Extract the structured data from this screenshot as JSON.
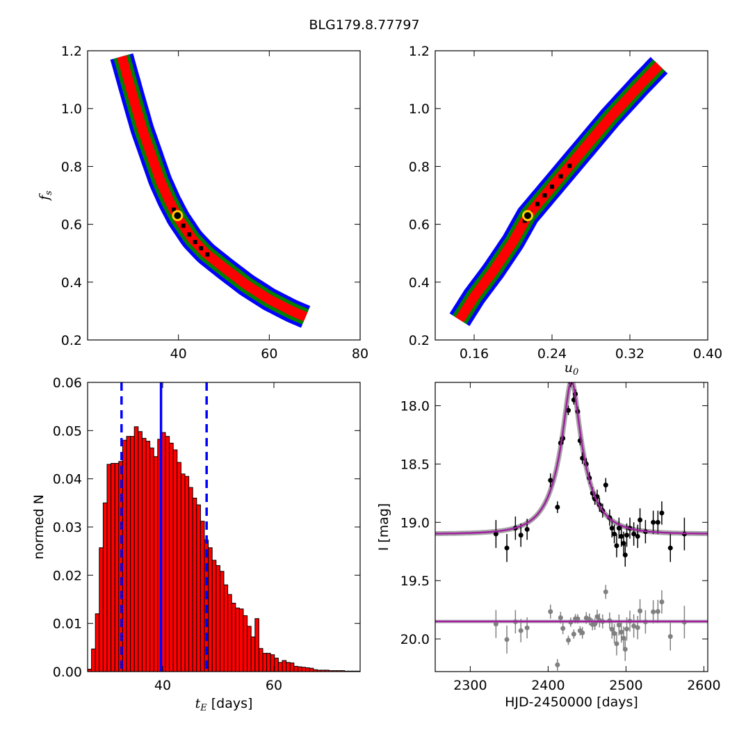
{
  "figure_title": "BLG179.8.77797",
  "chart_data": [
    {
      "id": "fs-vs-tE",
      "type": "heatmap",
      "ylabel": "f",
      "ylabel_sub": "s",
      "xlim": [
        20,
        80
      ],
      "ylim": [
        0.2,
        1.2
      ],
      "xticks": [
        40,
        60,
        80
      ],
      "yticks": [
        0.2,
        0.4,
        0.6,
        0.8,
        1.0,
        1.2
      ],
      "ytick_labels": [
        "0.2",
        "0.4",
        "0.6",
        "0.8",
        "1.0",
        "1.2"
      ],
      "best_fit": {
        "x": 39.8,
        "y": 0.63
      },
      "band_colors": {
        "outer": "#0000ff",
        "mid": "#008000",
        "inner": "#ff0000",
        "core": "#000000"
      },
      "ridge": [
        [
          27.5,
          1.18
        ],
        [
          30,
          1.04
        ],
        [
          32,
          0.93
        ],
        [
          34,
          0.84
        ],
        [
          36,
          0.75
        ],
        [
          38,
          0.68
        ],
        [
          40,
          0.62
        ],
        [
          43,
          0.55
        ],
        [
          46,
          0.5
        ],
        [
          50,
          0.45
        ],
        [
          55,
          0.39
        ],
        [
          60,
          0.34
        ],
        [
          65,
          0.3
        ],
        [
          68,
          0.28
        ]
      ]
    },
    {
      "id": "fs-vs-u0",
      "type": "heatmap",
      "xlabel": "u",
      "xlabel_sub": "0",
      "xlim": [
        0.12,
        0.4
      ],
      "ylim": [
        0.2,
        1.2
      ],
      "xticks": [
        0.16,
        0.24,
        0.32,
        0.4
      ],
      "xtick_labels": [
        "0.16",
        "0.24",
        "0.32",
        "0.40"
      ],
      "yticks": [
        0.2,
        0.4,
        0.6,
        0.8,
        1.0,
        1.2
      ],
      "ytick_labels": [
        "0.2",
        "0.4",
        "0.6",
        "0.8",
        "1.0",
        "1.2"
      ],
      "best_fit": {
        "x": 0.215,
        "y": 0.63
      },
      "band_colors": {
        "outer": "#0000ff",
        "mid": "#008000",
        "inner": "#ff0000",
        "core": "#000000"
      },
      "ridge": [
        [
          0.145,
          0.27
        ],
        [
          0.16,
          0.35
        ],
        [
          0.18,
          0.44
        ],
        [
          0.2,
          0.54
        ],
        [
          0.215,
          0.63
        ],
        [
          0.24,
          0.73
        ],
        [
          0.27,
          0.85
        ],
        [
          0.3,
          0.97
        ],
        [
          0.33,
          1.08
        ],
        [
          0.35,
          1.15
        ]
      ]
    },
    {
      "id": "tE-histogram",
      "type": "bar",
      "xlabel": "t",
      "xlabel_sub": "E",
      "xlabel_unit": " [days]",
      "ylabel": "normed N",
      "xlim": [
        26.5,
        75.5
      ],
      "ylim": [
        0,
        0.06
      ],
      "xticks": [
        40,
        60
      ],
      "yticks": [
        0,
        0.01,
        0.02,
        0.03,
        0.04,
        0.05,
        0.06
      ],
      "ytick_labels": [
        "0.00",
        "0.01",
        "0.02",
        "0.03",
        "0.04",
        "0.05",
        "0.06"
      ],
      "bin_start": 26.5,
      "bin_width": 0.7,
      "values": [
        0.0005,
        0.0047,
        0.012,
        0.0257,
        0.035,
        0.043,
        0.0432,
        0.0432,
        0.0436,
        0.048,
        0.0488,
        0.0488,
        0.0508,
        0.0498,
        0.0484,
        0.0478,
        0.0464,
        0.0446,
        0.0482,
        0.0496,
        0.0488,
        0.0474,
        0.046,
        0.0434,
        0.041,
        0.0405,
        0.0382,
        0.036,
        0.0346,
        0.0312,
        0.0273,
        0.0257,
        0.0231,
        0.022,
        0.0208,
        0.018,
        0.016,
        0.0142,
        0.0132,
        0.013,
        0.0116,
        0.0094,
        0.0072,
        0.011,
        0.0048,
        0.0038,
        0.0038,
        0.0035,
        0.0028,
        0.0019,
        0.0023,
        0.0019,
        0.0018,
        0.0011,
        0.001,
        0.0009,
        0.0008,
        0.0007,
        0.0004,
        0.0003,
        0.0003,
        0.0003,
        0.0002,
        0.0002,
        0.0002,
        0.0002,
        0.0001,
        0.0001,
        0.0001,
        0.0001
      ],
      "bar_color": "#ff0000",
      "median": 39.7,
      "lower": 32.6,
      "upper": 47.9,
      "line_color": "#0000ff"
    },
    {
      "id": "light-curve",
      "type": "scatter",
      "xlabel": "HJD-2450000 [days]",
      "ylabel": "I [mag]",
      "xlim": [
        2255,
        2605
      ],
      "ylim": [
        20.28,
        17.8
      ],
      "xticks": [
        2300,
        2400,
        2500,
        2600
      ],
      "yticks": [
        18.0,
        18.5,
        19.0,
        19.5,
        20.0
      ],
      "ytick_labels": [
        "18.0",
        "18.5",
        "19.0",
        "19.5",
        "20.0"
      ],
      "model": {
        "t0": 2430,
        "tE": 39.7,
        "u0": 0.215,
        "fs": 0.63,
        "I0": 19.1,
        "color": "#a020a0"
      },
      "residual_offset": 19.85,
      "points": [
        [
          2333,
          19.1,
          0.12
        ],
        [
          2347,
          19.22,
          0.12
        ],
        [
          2358,
          19.05,
          0.1
        ],
        [
          2365,
          19.11,
          0.1
        ],
        [
          2373,
          19.06,
          0.09
        ],
        [
          2403,
          18.64,
          0.06
        ],
        [
          2412,
          18.87,
          0.05
        ],
        [
          2416,
          18.32,
          0.05
        ],
        [
          2419,
          18.28,
          0.05
        ],
        [
          2426,
          18.04,
          0.04
        ],
        [
          2429,
          17.8,
          0.04
        ],
        [
          2433,
          17.95,
          0.04
        ],
        [
          2435,
          17.9,
          0.04
        ],
        [
          2438,
          18.05,
          0.04
        ],
        [
          2441,
          18.3,
          0.04
        ],
        [
          2444,
          18.45,
          0.05
        ],
        [
          2449,
          18.5,
          0.05
        ],
        [
          2453,
          18.62,
          0.05
        ],
        [
          2457,
          18.75,
          0.05
        ],
        [
          2460,
          18.8,
          0.05
        ],
        [
          2463,
          18.78,
          0.06
        ],
        [
          2466,
          18.85,
          0.06
        ],
        [
          2470,
          18.9,
          0.06
        ],
        [
          2474,
          18.68,
          0.06
        ],
        [
          2479,
          18.96,
          0.07
        ],
        [
          2482,
          19.05,
          0.08
        ],
        [
          2485,
          19.1,
          0.08
        ],
        [
          2488,
          19.2,
          0.1
        ],
        [
          2491,
          19.05,
          0.09
        ],
        [
          2494,
          19.12,
          0.09
        ],
        [
          2497,
          19.18,
          0.1
        ],
        [
          2499,
          19.28,
          0.1
        ],
        [
          2501,
          19.11,
          0.1
        ],
        [
          2505,
          19.05,
          0.09
        ],
        [
          2510,
          19.1,
          0.1
        ],
        [
          2515,
          19.12,
          0.1
        ],
        [
          2518,
          18.98,
          0.1
        ],
        [
          2525,
          19.08,
          0.1
        ],
        [
          2535,
          19.0,
          0.1
        ],
        [
          2541,
          19.0,
          0.1
        ],
        [
          2546,
          18.92,
          0.1
        ],
        [
          2557,
          19.22,
          0.12
        ],
        [
          2575,
          19.1,
          0.14
        ]
      ],
      "point_color": "#000000",
      "residual_color": "#808080",
      "band_color": "#808080"
    }
  ]
}
